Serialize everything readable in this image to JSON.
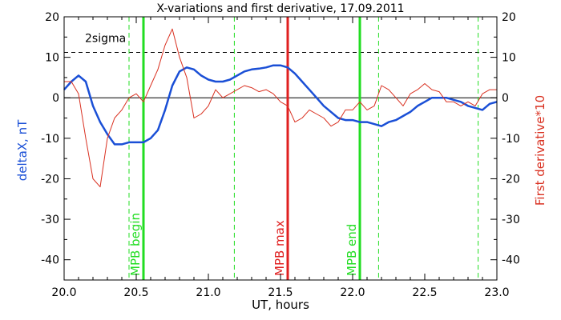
{
  "chart_data": {
    "type": "line",
    "title": "X-variations and first derivative, 17.09.2011",
    "xlabel": "UT, hours",
    "ylabel": "deltaX, nT",
    "y2label": "First derivative*10",
    "xlim": [
      20.0,
      23.0
    ],
    "ylim": [
      -45,
      20
    ],
    "y2lim": [
      -45,
      20
    ],
    "x_ticks": [
      "20.0",
      "20.5",
      "21.0",
      "21.5",
      "22.0",
      "22.5",
      "23.0"
    ],
    "y_ticks": [
      "20",
      "10",
      "0",
      "-10",
      "-20",
      "-30",
      "-40"
    ],
    "y2_ticks": [
      "20",
      "10",
      "0",
      "-10",
      "-20",
      "-30",
      "-40"
    ],
    "colors": {
      "deltaX": "#1a4fd6",
      "derivative": "#d93020",
      "green": "#22dd22",
      "red_line": "#e02020",
      "axis": "#000000"
    },
    "sigma": {
      "label": "2sigma",
      "value": 11.2
    },
    "zero_line": 0,
    "vertical_lines": [
      {
        "name": "mpb-begin",
        "x": 20.55,
        "label": "MPB begin",
        "style": "solid",
        "color": "#22dd22"
      },
      {
        "name": "mpb-max",
        "x": 21.55,
        "label": "MPB max",
        "style": "solid",
        "color": "#e02020"
      },
      {
        "name": "mpb-end",
        "x": 22.05,
        "label": "MPB end",
        "style": "solid",
        "color": "#22dd22"
      },
      {
        "name": "dashed-1",
        "x": 20.45,
        "style": "dashed",
        "color": "#22dd22"
      },
      {
        "name": "dashed-2",
        "x": 21.18,
        "style": "dashed",
        "color": "#22dd22"
      },
      {
        "name": "dashed-3",
        "x": 22.18,
        "style": "dashed",
        "color": "#22dd22"
      },
      {
        "name": "dashed-4",
        "x": 22.87,
        "style": "dashed",
        "color": "#22dd22"
      }
    ],
    "series": [
      {
        "name": "deltaX",
        "axis": "left",
        "x": [
          20.0,
          20.05,
          20.1,
          20.15,
          20.2,
          20.25,
          20.3,
          20.35,
          20.4,
          20.45,
          20.5,
          20.55,
          20.6,
          20.65,
          20.7,
          20.75,
          20.8,
          20.85,
          20.9,
          20.95,
          21.0,
          21.05,
          21.1,
          21.15,
          21.2,
          21.25,
          21.3,
          21.35,
          21.4,
          21.45,
          21.5,
          21.55,
          21.6,
          21.65,
          21.7,
          21.75,
          21.8,
          21.85,
          21.9,
          21.95,
          22.0,
          22.05,
          22.1,
          22.15,
          22.2,
          22.25,
          22.3,
          22.35,
          22.4,
          22.45,
          22.5,
          22.55,
          22.6,
          22.65,
          22.7,
          22.75,
          22.8,
          22.85,
          22.9,
          22.95,
          23.0
        ],
        "y": [
          2,
          4,
          5.5,
          4,
          -2,
          -6,
          -9,
          -11.5,
          -11.5,
          -11,
          -11,
          -11,
          -10,
          -8,
          -3,
          3,
          6.5,
          7.5,
          7,
          5.5,
          4.5,
          4,
          4,
          4.5,
          5.5,
          6.5,
          7,
          7.2,
          7.5,
          8,
          8,
          7.5,
          6,
          4,
          2,
          0,
          -2,
          -3.5,
          -5,
          -5.5,
          -5.5,
          -6,
          -6,
          -6.5,
          -7,
          -6,
          -5.5,
          -4.5,
          -3.5,
          -2,
          -1,
          0,
          0,
          0,
          -0.5,
          -1,
          -2,
          -2.5,
          -3,
          -1.5,
          -1
        ]
      },
      {
        "name": "First derivative*10",
        "axis": "right",
        "x": [
          20.0,
          20.05,
          20.1,
          20.15,
          20.2,
          20.25,
          20.3,
          20.35,
          20.4,
          20.45,
          20.5,
          20.55,
          20.6,
          20.65,
          20.7,
          20.75,
          20.8,
          20.85,
          20.9,
          20.95,
          21.0,
          21.05,
          21.1,
          21.15,
          21.2,
          21.25,
          21.3,
          21.35,
          21.4,
          21.45,
          21.5,
          21.55,
          21.6,
          21.65,
          21.7,
          21.75,
          21.8,
          21.85,
          21.9,
          21.95,
          22.0,
          22.05,
          22.1,
          22.15,
          22.2,
          22.25,
          22.3,
          22.35,
          22.4,
          22.45,
          22.5,
          22.55,
          22.6,
          22.65,
          22.7,
          22.75,
          22.8,
          22.85,
          22.9,
          22.95,
          23.0
        ],
        "y": [
          4,
          4,
          1,
          -10,
          -20,
          -22,
          -10,
          -5,
          -3,
          0,
          1,
          -1,
          3,
          7,
          13,
          17,
          10,
          5,
          -5,
          -4,
          -2,
          2,
          0,
          1,
          2,
          3,
          2.5,
          1.5,
          2,
          1,
          -1,
          -2,
          -6,
          -5,
          -3,
          -4,
          -5,
          -7,
          -6,
          -3,
          -3,
          -1,
          -3,
          -2,
          3,
          2,
          0,
          -2,
          1,
          2,
          3.5,
          2,
          1.5,
          -1,
          -1,
          -2,
          -1,
          -2,
          1,
          2,
          2
        ]
      }
    ]
  }
}
